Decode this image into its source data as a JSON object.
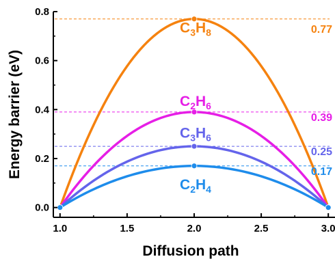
{
  "chart_data": {
    "type": "line",
    "xlabel": "Diffusion path",
    "ylabel": "Energy barrier (eV)",
    "xlim": [
      0.95,
      3.05
    ],
    "ylim": [
      -0.04,
      0.8
    ],
    "x_ticks": [
      "1.0",
      "1.5",
      "2.0",
      "2.5",
      "3.0"
    ],
    "y_ticks": [
      "0.0",
      "0.2",
      "0.4",
      "0.6",
      "0.8"
    ],
    "grid": false,
    "legend": "none",
    "x": [
      1.0,
      2.0,
      3.0
    ],
    "series": [
      {
        "name": "C3H8",
        "name_parts": {
          "c": "C",
          "c_sub": "3",
          "h": "H",
          "h_sub": "8"
        },
        "values": [
          0.0,
          0.77,
          0.0
        ],
        "barrier": 0.77,
        "barrier_label": "0.77",
        "color": "#F5820F"
      },
      {
        "name": "C2H6",
        "name_parts": {
          "c": "C",
          "c_sub": "2",
          "h": "H",
          "h_sub": "6"
        },
        "values": [
          0.0,
          0.39,
          0.0
        ],
        "barrier": 0.39,
        "barrier_label": "0.39",
        "color": "#E61EE6"
      },
      {
        "name": "C3H6",
        "name_parts": {
          "c": "C",
          "c_sub": "3",
          "h": "H",
          "h_sub": "6"
        },
        "values": [
          0.0,
          0.25,
          0.0
        ],
        "barrier": 0.25,
        "barrier_label": "0.25",
        "color": "#6464EB"
      },
      {
        "name": "C2H4",
        "name_parts": {
          "c": "C",
          "c_sub": "2",
          "h": "H",
          "h_sub": "4"
        },
        "values": [
          0.0,
          0.17,
          0.0
        ],
        "barrier": 0.17,
        "barrier_label": "0.17",
        "color": "#1E8CEB"
      }
    ]
  }
}
